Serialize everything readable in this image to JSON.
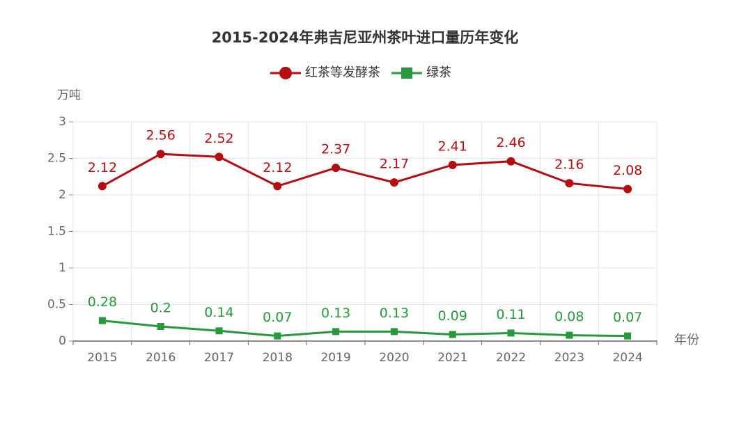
{
  "chart_data": {
    "type": "line",
    "title": "2015-2024年弗吉尼亚州茶叶进口量历年变化",
    "x_label": "年份",
    "y_label": "万吨",
    "categories": [
      "2015",
      "2016",
      "2017",
      "2018",
      "2019",
      "2020",
      "2021",
      "2022",
      "2023",
      "2024"
    ],
    "series": [
      {
        "name": "红茶等发酵茶",
        "color": "#b50d12",
        "marker": "circle",
        "values": [
          2.12,
          2.56,
          2.52,
          2.12,
          2.37,
          2.17,
          2.41,
          2.46,
          2.16,
          2.08
        ]
      },
      {
        "name": "绿茶",
        "color": "#27983b",
        "marker": "square",
        "values": [
          0.28,
          0.2,
          0.14,
          0.07,
          0.13,
          0.13,
          0.09,
          0.11,
          0.08,
          0.07
        ]
      }
    ],
    "ylim": [
      0,
      3
    ],
    "yticks": [
      0,
      0.5,
      1,
      1.5,
      2,
      2.5,
      3
    ],
    "grid": true,
    "legend": "top"
  }
}
